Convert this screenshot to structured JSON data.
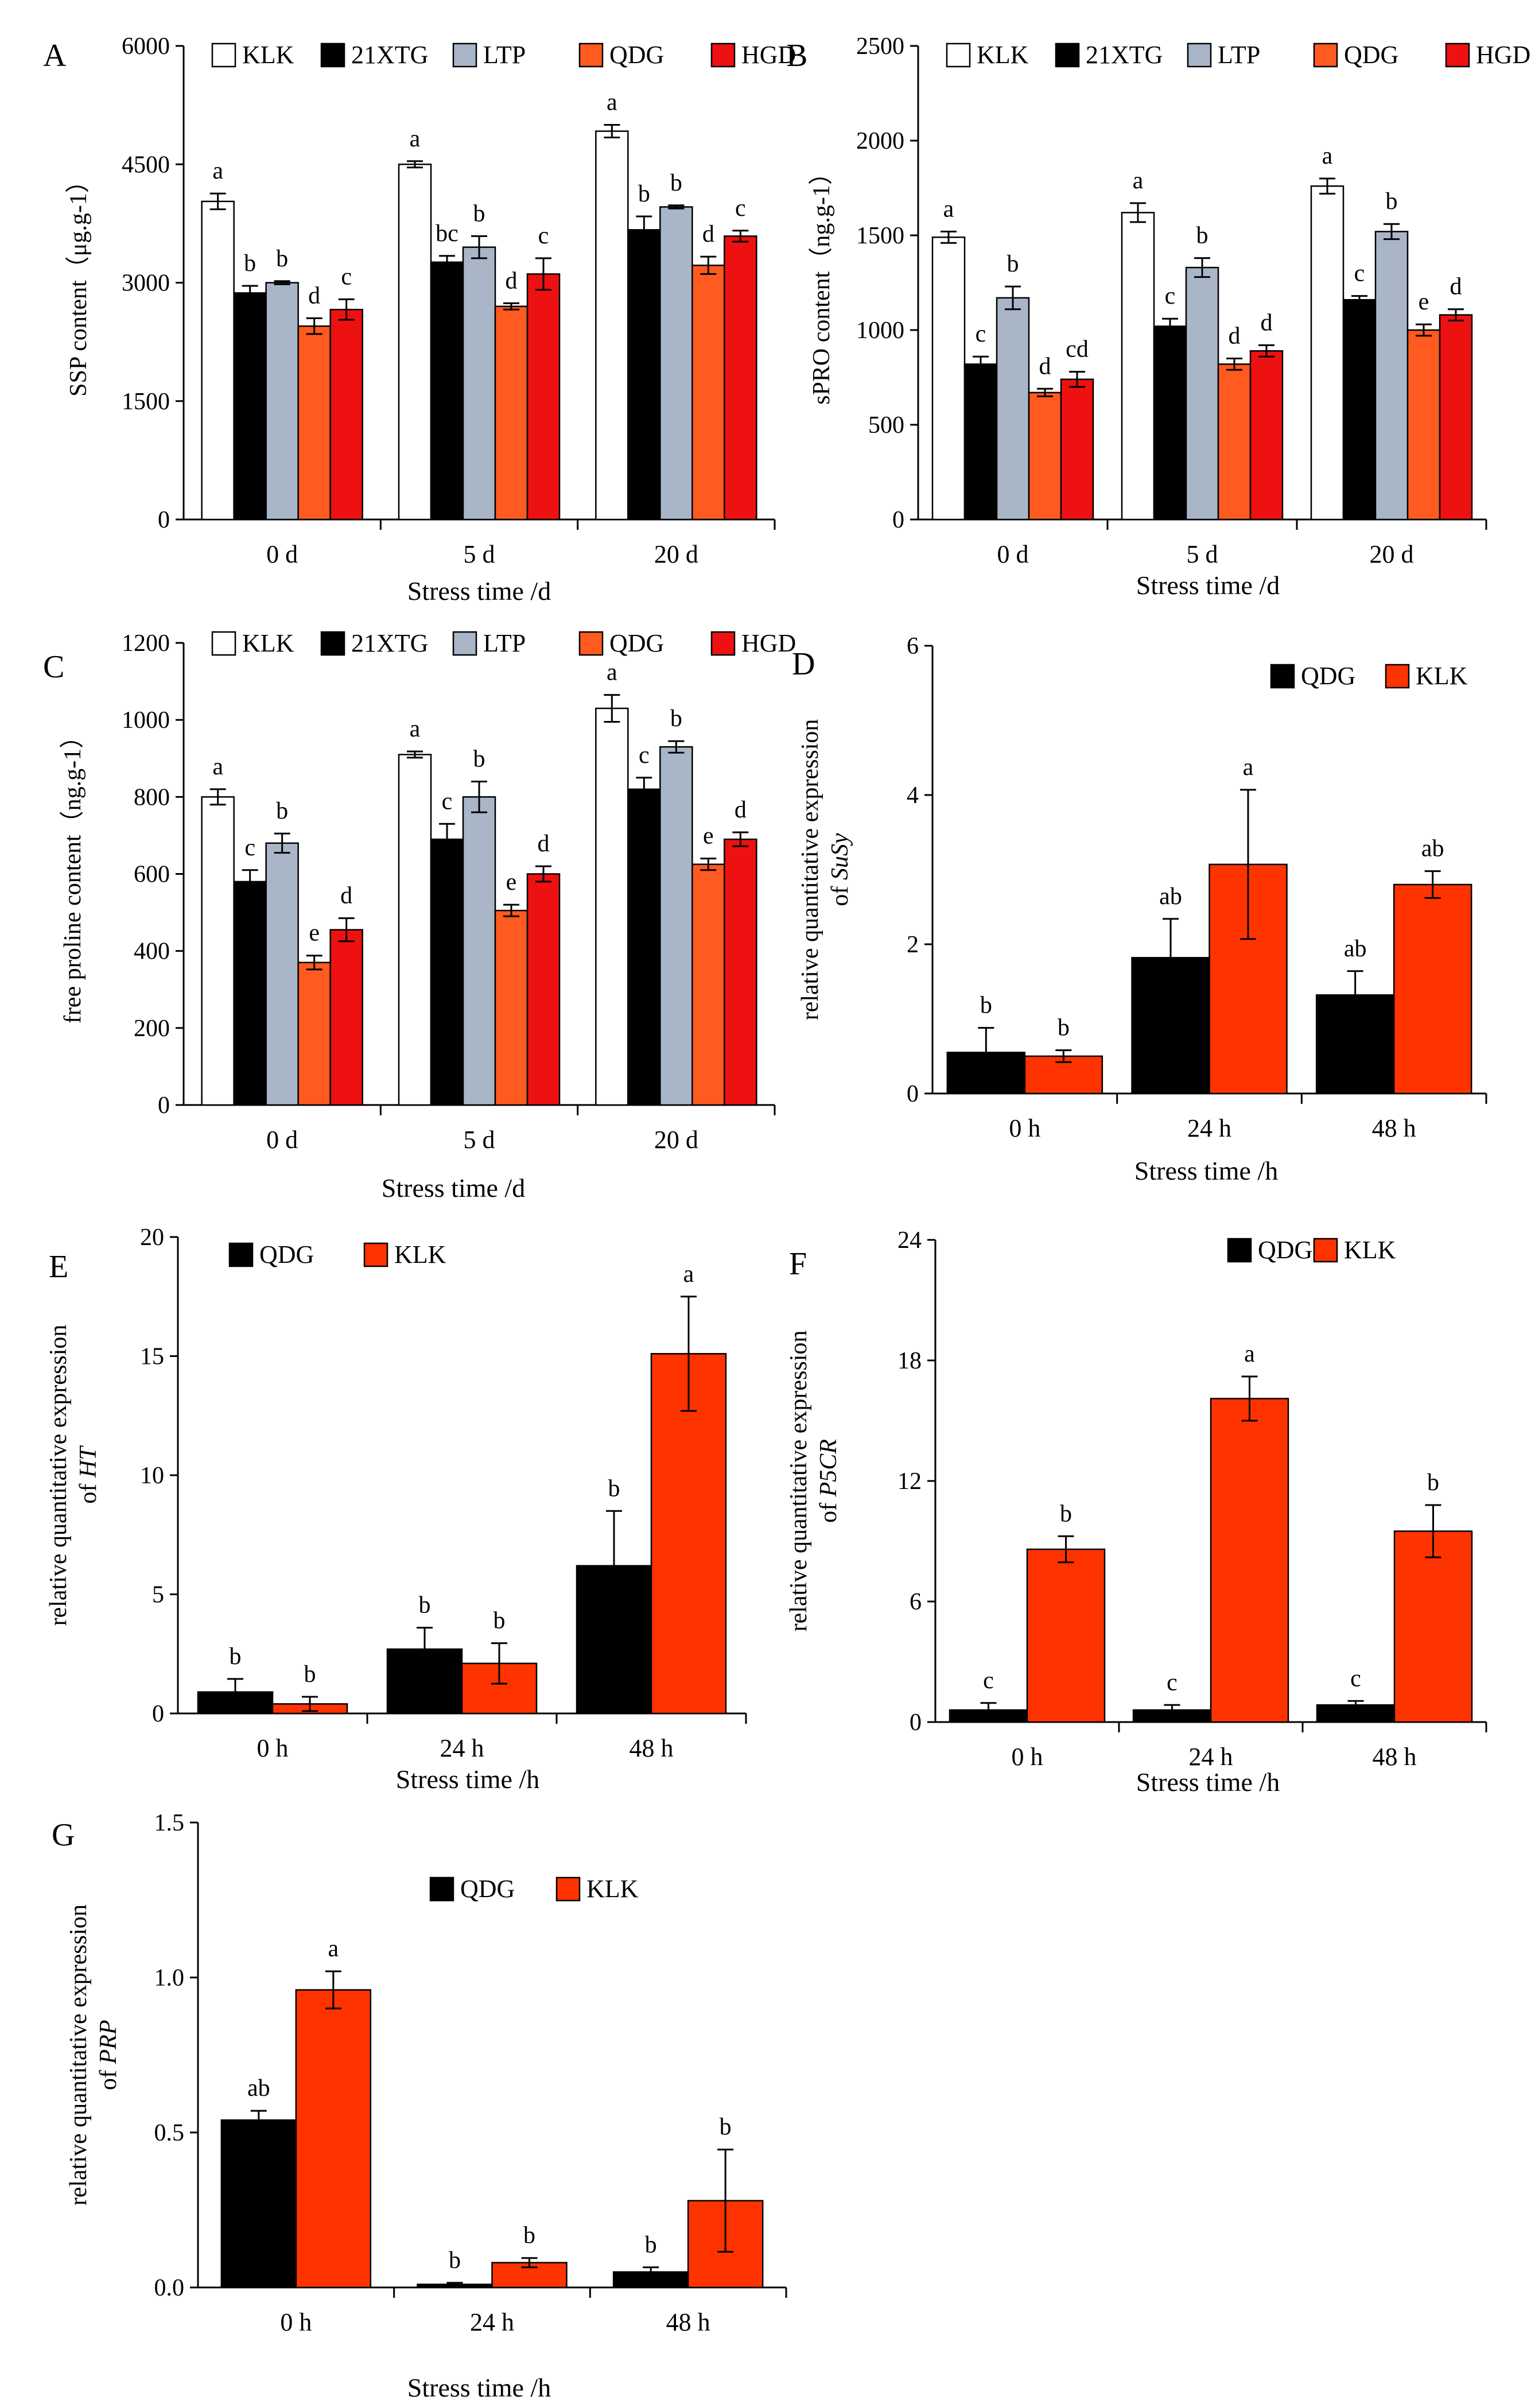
{
  "colors": {
    "KLK_grp": "#ffffff",
    "21XTG": "#000000",
    "LTP": "#a9b6c8",
    "QDG_grp": "#ff5a1f",
    "HGD": "#ee1111",
    "QDG": "#000000",
    "KLK": "#ff3300"
  },
  "chart_data": [
    {
      "panel": "A",
      "type": "bar",
      "categories": [
        "0 d",
        "5 d",
        "20 d"
      ],
      "series": [
        {
          "name": "KLK",
          "values": [
            4030,
            4500,
            4920
          ],
          "errors": [
            100,
            40,
            80
          ],
          "letters": [
            "a",
            "a",
            "a"
          ]
        },
        {
          "name": "21XTG",
          "values": [
            2870,
            3260,
            3670
          ],
          "errors": [
            90,
            80,
            170
          ],
          "letters": [
            "b",
            "bc",
            "b"
          ]
        },
        {
          "name": "LTP",
          "values": [
            3000,
            3450,
            3960
          ],
          "errors": [
            20,
            140,
            20
          ],
          "letters": [
            "b",
            "b",
            "b"
          ]
        },
        {
          "name": "QDG",
          "values": [
            2450,
            2700,
            3220
          ],
          "errors": [
            100,
            40,
            110
          ],
          "letters": [
            "d",
            "d",
            "d"
          ]
        },
        {
          "name": "HGD",
          "values": [
            2660,
            3110,
            3590
          ],
          "errors": [
            130,
            200,
            70
          ],
          "letters": [
            "c",
            "c",
            "c"
          ]
        }
      ],
      "ylabel": "SSP content（μg.g-1）",
      "xlabel": "Stress time /d",
      "ylim": [
        0,
        6000
      ],
      "yticks": [
        "0",
        "1500",
        "3000",
        "4500",
        "6000"
      ]
    },
    {
      "panel": "B",
      "type": "bar",
      "categories": [
        "0 d",
        "5 d",
        "20 d"
      ],
      "series": [
        {
          "name": "KLK",
          "values": [
            1490,
            1620,
            1760
          ],
          "errors": [
            30,
            50,
            40
          ],
          "letters": [
            "a",
            "a",
            "a"
          ]
        },
        {
          "name": "21XTG",
          "values": [
            820,
            1020,
            1160
          ],
          "errors": [
            40,
            40,
            20
          ],
          "letters": [
            "c",
            "c",
            "c"
          ]
        },
        {
          "name": "LTP",
          "values": [
            1170,
            1330,
            1520
          ],
          "errors": [
            60,
            50,
            40
          ],
          "letters": [
            "b",
            "b",
            "b"
          ]
        },
        {
          "name": "QDG",
          "values": [
            670,
            820,
            1000
          ],
          "errors": [
            20,
            30,
            30
          ],
          "letters": [
            "d",
            "d",
            "e"
          ]
        },
        {
          "name": "HGD",
          "values": [
            740,
            890,
            1080
          ],
          "errors": [
            40,
            30,
            30
          ],
          "letters": [
            "cd",
            "d",
            "d"
          ]
        }
      ],
      "ylabel": "sPRO content（ng.g-1）",
      "xlabel": "Stress time /d",
      "ylim": [
        0,
        2500
      ],
      "yticks": [
        "0",
        "500",
        "1000",
        "1500",
        "2000",
        "2500"
      ]
    },
    {
      "panel": "C",
      "type": "bar",
      "categories": [
        "0 d",
        "5 d",
        "20 d"
      ],
      "series": [
        {
          "name": "KLK",
          "values": [
            800,
            910,
            1030
          ],
          "errors": [
            20,
            8,
            35
          ],
          "letters": [
            "a",
            "a",
            "a"
          ]
        },
        {
          "name": "21XTG",
          "values": [
            580,
            690,
            820
          ],
          "errors": [
            30,
            40,
            30
          ],
          "letters": [
            "c",
            "c",
            "c"
          ]
        },
        {
          "name": "LTP",
          "values": [
            680,
            800,
            930
          ],
          "errors": [
            25,
            40,
            15
          ],
          "letters": [
            "b",
            "b",
            "b"
          ]
        },
        {
          "name": "QDG",
          "values": [
            370,
            505,
            625
          ],
          "errors": [
            18,
            15,
            15
          ],
          "letters": [
            "e",
            "e",
            "e"
          ]
        },
        {
          "name": "HGD",
          "values": [
            455,
            600,
            690
          ],
          "errors": [
            30,
            20,
            18
          ],
          "letters": [
            "d",
            "d",
            "d"
          ]
        }
      ],
      "ylabel": "free proline content（ng.g-1）",
      "xlabel": "Stress time /d",
      "ylim": [
        0,
        1200
      ],
      "yticks": [
        "0",
        "200",
        "400",
        "600",
        "800",
        "1000",
        "1200"
      ]
    },
    {
      "panel": "D",
      "type": "bar",
      "categories": [
        "0 h",
        "24 h",
        "48 h"
      ],
      "series": [
        {
          "name": "QDG",
          "values": [
            0.55,
            1.82,
            1.32
          ],
          "errors": [
            0.33,
            0.52,
            0.32
          ],
          "letters": [
            "b",
            "ab",
            "ab"
          ]
        },
        {
          "name": "KLK",
          "values": [
            0.5,
            3.07,
            2.8
          ],
          "errors": [
            0.08,
            1.0,
            0.18
          ],
          "letters": [
            "b",
            "a",
            "ab"
          ]
        }
      ],
      "ylabel": [
        "relative quantitative expression",
        "of ",
        "SuSy"
      ],
      "xlabel": "Stress time /h",
      "ylim": [
        0,
        6
      ],
      "yticks": [
        "0",
        "2",
        "4",
        "6"
      ]
    },
    {
      "panel": "E",
      "type": "bar",
      "categories": [
        "0 h",
        "24 h",
        "48 h"
      ],
      "series": [
        {
          "name": "QDG",
          "values": [
            0.9,
            2.7,
            6.2
          ],
          "errors": [
            0.55,
            0.9,
            2.3
          ],
          "letters": [
            "b",
            "b",
            "b"
          ]
        },
        {
          "name": "KLK",
          "values": [
            0.4,
            2.1,
            15.1
          ],
          "errors": [
            0.3,
            0.85,
            2.4
          ],
          "letters": [
            "b",
            "b",
            "a"
          ]
        }
      ],
      "ylabel": [
        "relative quantitative expression",
        "of ",
        "HT"
      ],
      "xlabel": "Stress time /h",
      "ylim": [
        0,
        20
      ],
      "yticks": [
        "0",
        "5",
        "10",
        "15",
        "20"
      ]
    },
    {
      "panel": "F",
      "type": "bar",
      "categories": [
        "0 h",
        "24 h",
        "48 h"
      ],
      "series": [
        {
          "name": "QDG",
          "values": [
            0.6,
            0.6,
            0.85
          ],
          "errors": [
            0.35,
            0.25,
            0.2
          ],
          "letters": [
            "c",
            "c",
            "c"
          ]
        },
        {
          "name": "KLK",
          "values": [
            8.6,
            16.1,
            9.5
          ],
          "errors": [
            0.65,
            1.1,
            1.3
          ],
          "letters": [
            "b",
            "a",
            "b"
          ]
        }
      ],
      "ylabel": [
        "relative quantitative expression",
        "of ",
        "P5CR"
      ],
      "xlabel": "Stress time /h",
      "ylim": [
        0,
        24
      ],
      "yticks": [
        "0",
        "6",
        "12",
        "18",
        "24"
      ]
    },
    {
      "panel": "G",
      "type": "bar",
      "categories": [
        "0 h",
        "24 h",
        "48 h"
      ],
      "series": [
        {
          "name": "QDG",
          "values": [
            0.54,
            0.01,
            0.05
          ],
          "errors": [
            0.03,
            0.005,
            0.015
          ],
          "letters": [
            "ab",
            "b",
            "b"
          ]
        },
        {
          "name": "KLK",
          "values": [
            0.96,
            0.08,
            0.28
          ],
          "errors": [
            0.06,
            0.015,
            0.165
          ],
          "letters": [
            "a",
            "b",
            "b"
          ]
        }
      ],
      "ylabel": [
        "relative quantitative expression",
        "of ",
        "PRP"
      ],
      "xlabel": "Stress time /h",
      "ylim": [
        0,
        1.5
      ],
      "yticks": [
        "0.0",
        "0.5",
        "1.0",
        "1.5"
      ]
    }
  ]
}
